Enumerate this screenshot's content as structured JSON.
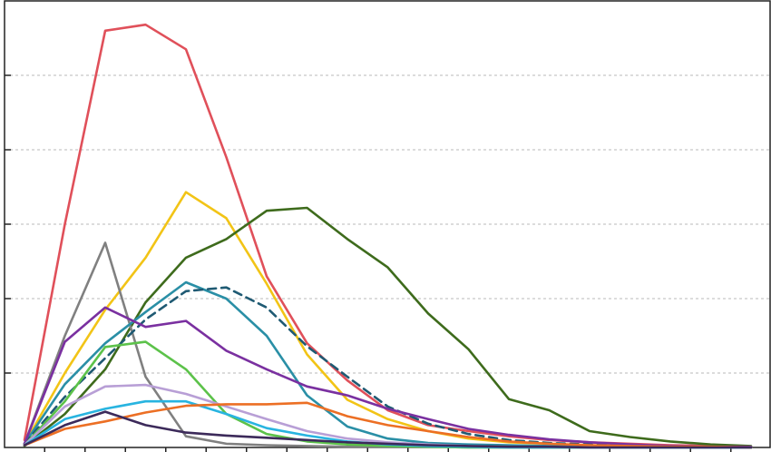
{
  "chart_data": {
    "type": "line",
    "title": "",
    "xlabel": "",
    "ylabel": "",
    "grid": "horizontal-dashed",
    "legend": "none",
    "x": [
      0,
      1,
      2,
      3,
      4,
      5,
      6,
      7,
      8,
      9,
      10,
      11,
      12,
      13,
      14,
      15,
      16,
      17,
      18
    ],
    "ylim": [
      0,
      6
    ],
    "series": [
      {
        "color": "#e0505a",
        "dash": false,
        "values": [
          0.1,
          3.0,
          5.6,
          5.68,
          5.35,
          3.9,
          2.3,
          1.4,
          0.9,
          0.5,
          0.3,
          0.22,
          0.15,
          0.1,
          0.07,
          0.05,
          0.03,
          0.02,
          0.01
        ]
      },
      {
        "color": "#f2c416",
        "dash": false,
        "values": [
          0.05,
          1.0,
          1.85,
          2.55,
          3.43,
          3.08,
          2.2,
          1.25,
          0.64,
          0.38,
          0.22,
          0.12,
          0.07,
          0.05,
          0.03,
          0.02,
          0.01,
          0.01,
          0.01
        ]
      },
      {
        "color": "#3e6b1c",
        "dash": false,
        "values": [
          0.02,
          0.45,
          1.05,
          1.95,
          2.55,
          2.8,
          3.18,
          3.22,
          2.8,
          2.42,
          1.8,
          1.32,
          0.65,
          0.5,
          0.22,
          0.14,
          0.08,
          0.04,
          0.02
        ]
      },
      {
        "color": "#808080",
        "dash": false,
        "values": [
          0.05,
          1.5,
          2.75,
          0.95,
          0.15,
          0.05,
          0.03,
          0.02,
          0.01,
          0.01,
          0.01,
          0.0,
          0.0,
          0.0,
          0.0,
          0.0,
          0.0,
          0.0,
          0.0
        ]
      },
      {
        "color": "#2a8fa6",
        "dash": false,
        "values": [
          0.05,
          0.85,
          1.4,
          1.82,
          2.22,
          2.0,
          1.5,
          0.7,
          0.28,
          0.12,
          0.06,
          0.04,
          0.03,
          0.02,
          0.01,
          0.01,
          0.0,
          0.0,
          0.0
        ]
      },
      {
        "color": "#1f5a73",
        "dash": true,
        "values": [
          0.05,
          0.68,
          1.2,
          1.72,
          2.1,
          2.15,
          1.88,
          1.36,
          0.95,
          0.55,
          0.32,
          0.18,
          0.1,
          0.06,
          0.04,
          0.02,
          0.01,
          0.01,
          0.0
        ]
      },
      {
        "color": "#7a30a0",
        "dash": false,
        "values": [
          0.05,
          1.42,
          1.88,
          1.62,
          1.7,
          1.3,
          1.05,
          0.82,
          0.7,
          0.52,
          0.38,
          0.25,
          0.17,
          0.11,
          0.07,
          0.04,
          0.02,
          0.01,
          0.01
        ]
      },
      {
        "color": "#5cc24a",
        "dash": false,
        "values": [
          0.03,
          0.62,
          1.35,
          1.42,
          1.05,
          0.45,
          0.18,
          0.08,
          0.04,
          0.02,
          0.01,
          0.0,
          0.0,
          0.0,
          0.0,
          0.0,
          0.0,
          0.0,
          0.0
        ]
      },
      {
        "color": "#b89fd6",
        "dash": false,
        "values": [
          0.03,
          0.55,
          0.82,
          0.84,
          0.72,
          0.55,
          0.38,
          0.22,
          0.12,
          0.07,
          0.04,
          0.02,
          0.01,
          0.01,
          0.0,
          0.0,
          0.0,
          0.0,
          0.0
        ]
      },
      {
        "color": "#28b4e0",
        "dash": false,
        "values": [
          0.03,
          0.38,
          0.52,
          0.62,
          0.62,
          0.45,
          0.26,
          0.16,
          0.08,
          0.04,
          0.02,
          0.01,
          0.0,
          0.0,
          0.0,
          0.0,
          0.0,
          0.0,
          0.0
        ]
      },
      {
        "color": "#ec6f24",
        "dash": false,
        "values": [
          0.03,
          0.25,
          0.35,
          0.47,
          0.56,
          0.58,
          0.58,
          0.6,
          0.42,
          0.3,
          0.22,
          0.14,
          0.08,
          0.05,
          0.03,
          0.02,
          0.01,
          0.01,
          0.0
        ]
      },
      {
        "color": "#3c2a5a",
        "dash": false,
        "values": [
          0.03,
          0.3,
          0.48,
          0.3,
          0.2,
          0.16,
          0.13,
          0.1,
          0.07,
          0.05,
          0.03,
          0.02,
          0.01,
          0.01,
          0.0,
          0.0,
          0.0,
          0.0,
          0.0
        ]
      }
    ]
  }
}
